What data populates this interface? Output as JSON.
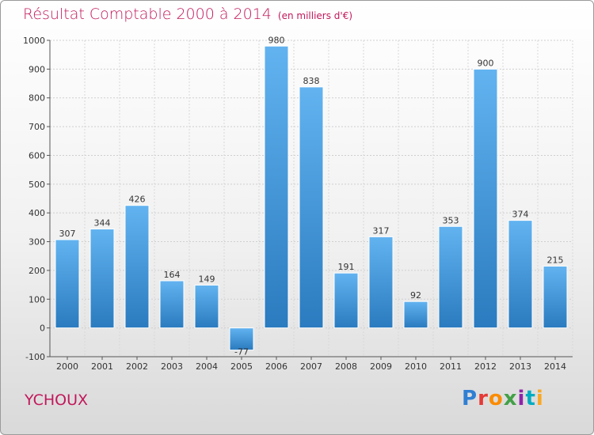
{
  "title": "Résultat Comptable 2000 à 2014",
  "subtitle": "(en milliers d'€)",
  "city": "YCHOUX",
  "logo": [
    "P",
    "r",
    "o",
    "x",
    "i",
    "t",
    "i"
  ],
  "colors": {
    "title": "#c2185b",
    "bar_light": "#5fb0ee",
    "bar_dark": "#2b7dc0"
  },
  "chart_data": {
    "type": "bar",
    "categories": [
      "2000",
      "2001",
      "2002",
      "2003",
      "2004",
      "2005",
      "2006",
      "2007",
      "2008",
      "2009",
      "2010",
      "2011",
      "2012",
      "2013",
      "2014"
    ],
    "values": [
      307,
      344,
      426,
      164,
      149,
      -77,
      980,
      838,
      191,
      317,
      92,
      353,
      900,
      374,
      215
    ],
    "value_labels": [
      "307",
      "344",
      "426",
      "164",
      "149",
      "-77",
      "980",
      "838",
      "191",
      "317",
      "92",
      "353",
      "900",
      "374",
      "215"
    ],
    "ylim": [
      -100,
      1000
    ],
    "yticks": [
      -100,
      0,
      100,
      200,
      300,
      400,
      500,
      600,
      700,
      800,
      900,
      1000
    ],
    "ytick_labels": [
      "-100",
      "0",
      "100",
      "200",
      "300",
      "400",
      "500",
      "600",
      "700",
      "800",
      "900",
      "1000"
    ],
    "grid": true
  }
}
